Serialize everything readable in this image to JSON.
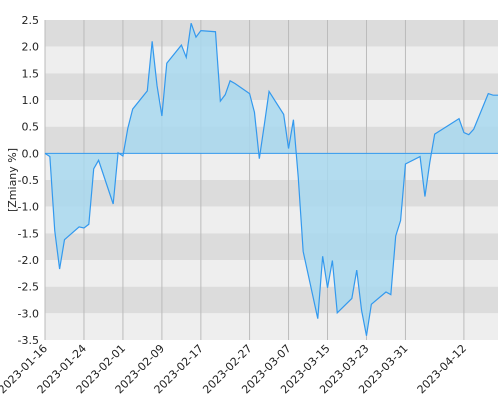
{
  "chart_data": {
    "type": "area",
    "title": "",
    "xlabel": "",
    "ylabel": "[Zmiany %]",
    "ylim": [
      -3.5,
      2.5
    ],
    "y_ticks": [
      "2.5",
      "2.0",
      "1.5",
      "1.0",
      "0.5",
      "0.0",
      "-0.5",
      "-1.0",
      "-1.5",
      "-2.0",
      "-2.5",
      "-3.0",
      "-3.5"
    ],
    "x_ticks": [
      "2023-01-16",
      "2023-01-24",
      "2023-02-01",
      "2023-02-09",
      "2023-02-17",
      "2023-02-27",
      "2023-03-07",
      "2023-03-15",
      "2023-03-23",
      "2023-03-31",
      "2023-04-12"
    ],
    "grid": true,
    "colors": {
      "line": "#3399ee",
      "fill": "#a8d8ee",
      "band_dark": "#dcdcdc",
      "band_light": "#eeeeee",
      "grid": "#bbbbbb"
    },
    "series": [
      {
        "x": [
          "2023-01-16",
          "2023-01-17",
          "2023-01-18",
          "2023-01-19",
          "2023-01-20",
          "2023-01-23",
          "2023-01-24",
          "2023-01-25",
          "2023-01-26",
          "2023-01-27",
          "2023-01-30",
          "2023-01-31",
          "2023-02-01",
          "2023-02-02",
          "2023-02-03",
          "2023-02-06",
          "2023-02-07",
          "2023-02-08",
          "2023-02-09",
          "2023-02-10",
          "2023-02-13",
          "2023-02-14",
          "2023-02-15",
          "2023-02-16",
          "2023-02-17",
          "2023-02-20",
          "2023-02-21",
          "2023-02-22",
          "2023-02-23",
          "2023-02-24",
          "2023-02-27",
          "2023-02-28",
          "2023-03-01",
          "2023-03-02",
          "2023-03-03",
          "2023-03-06",
          "2023-03-07",
          "2023-03-08",
          "2023-03-09",
          "2023-03-10",
          "2023-03-13",
          "2023-03-14",
          "2023-03-15",
          "2023-03-16",
          "2023-03-17",
          "2023-03-20",
          "2023-03-21",
          "2023-03-22",
          "2023-03-23",
          "2023-03-24",
          "2023-03-27",
          "2023-03-28",
          "2023-03-29",
          "2023-03-30",
          "2023-03-31",
          "2023-04-03",
          "2023-04-04",
          "2023-04-05",
          "2023-04-06",
          "2023-04-11",
          "2023-04-12",
          "2023-04-13",
          "2023-04-14",
          "2023-04-17",
          "2023-04-18",
          "2023-04-19"
        ],
        "values": [
          0.0,
          -0.06,
          -1.45,
          -2.17,
          -1.62,
          -1.38,
          -1.4,
          -1.33,
          -0.29,
          -0.13,
          -0.95,
          0.01,
          -0.05,
          0.47,
          0.83,
          1.17,
          2.1,
          1.27,
          0.7,
          1.69,
          2.03,
          1.8,
          2.44,
          2.18,
          2.3,
          2.28,
          0.98,
          1.1,
          1.36,
          1.31,
          1.12,
          0.77,
          -0.1,
          0.52,
          1.16,
          0.73,
          0.09,
          0.63,
          -0.46,
          -1.84,
          -3.1,
          -1.93,
          -2.52,
          -2.01,
          -2.99,
          -2.72,
          -2.19,
          -2.95,
          -3.42,
          -2.83,
          -2.6,
          -2.65,
          -1.55,
          -1.26,
          -0.2,
          -0.06,
          -0.81,
          -0.17,
          0.36,
          0.65,
          0.39,
          0.35,
          0.45,
          1.12,
          1.09,
          1.09
        ]
      }
    ]
  }
}
